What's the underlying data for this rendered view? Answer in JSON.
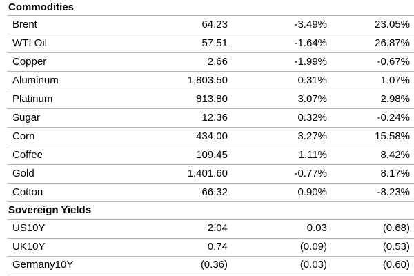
{
  "sections": [
    {
      "title": "Commodities",
      "rows": [
        [
          "Brent",
          "64.23",
          "-3.49%",
          "23.05%"
        ],
        [
          "WTI Oil",
          "57.51",
          "-1.64%",
          "26.87%"
        ],
        [
          "Copper",
          "2.66",
          "-1.99%",
          "-0.67%"
        ],
        [
          "Aluminum",
          "1,803.50",
          "0.31%",
          "1.07%"
        ],
        [
          "Platinum",
          "813.80",
          "3.07%",
          "2.98%"
        ],
        [
          "Sugar",
          "12.36",
          "0.32%",
          "-0.24%"
        ],
        [
          "Corn",
          "434.00",
          "3.27%",
          "15.58%"
        ],
        [
          "Coffee",
          "109.45",
          "1.11%",
          "8.42%"
        ],
        [
          "Gold",
          "1,401.60",
          "-0.77%",
          "8.17%"
        ],
        [
          "Cotton",
          "66.32",
          "0.90%",
          "-8.23%"
        ]
      ]
    },
    {
      "title": "Sovereign Yields",
      "rows": [
        [
          "US10Y",
          "2.04",
          "0.03",
          "(0.68)"
        ],
        [
          "UK10Y",
          "0.74",
          "(0.09)",
          "(0.53)"
        ],
        [
          "Germany10Y",
          "(0.36)",
          "(0.03)",
          "(0.60)"
        ]
      ]
    }
  ]
}
